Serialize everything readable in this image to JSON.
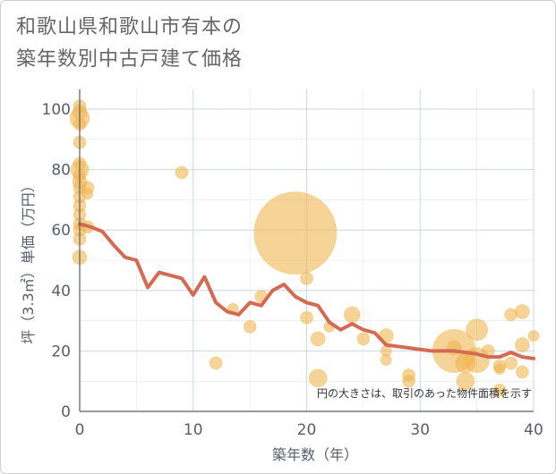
{
  "title": {
    "line1": "和歌山県和歌山市有本の",
    "line2": "築年数別中古戸建て価格"
  },
  "colors": {
    "bubble": "#f0b550",
    "line": "#d36a52",
    "grid": "#cdd6e0"
  },
  "chart_data": {
    "type": "scatter",
    "title": "和歌山県和歌山市有本の築年数別中古戸建て価格",
    "xlabel": "築年数（年）",
    "ylabel": "坪（3.3㎡）単価（万円）",
    "xlim": [
      0,
      40
    ],
    "ylim": [
      0,
      100
    ],
    "xticks": [
      0,
      10,
      20,
      30,
      40
    ],
    "yticks": [
      0,
      20,
      40,
      60,
      80,
      100
    ],
    "note": "円の大きさは、取引のあった物件面積を示す",
    "scatter": [
      {
        "x": 0,
        "y": 101,
        "s": 7
      },
      {
        "x": 0,
        "y": 99,
        "s": 8
      },
      {
        "x": 0,
        "y": 97,
        "s": 11
      },
      {
        "x": 0,
        "y": 95,
        "s": 7
      },
      {
        "x": 0,
        "y": 89,
        "s": 7
      },
      {
        "x": 0,
        "y": 82,
        "s": 7
      },
      {
        "x": 0,
        "y": 80,
        "s": 10
      },
      {
        "x": 0,
        "y": 78,
        "s": 7
      },
      {
        "x": 0,
        "y": 76,
        "s": 8
      },
      {
        "x": 0,
        "y": 74,
        "s": 7
      },
      {
        "x": 0,
        "y": 71,
        "s": 7
      },
      {
        "x": 0,
        "y": 68,
        "s": 7
      },
      {
        "x": 0,
        "y": 65,
        "s": 7
      },
      {
        "x": 0,
        "y": 62,
        "s": 7
      },
      {
        "x": 0,
        "y": 60,
        "s": 7
      },
      {
        "x": 0,
        "y": 57,
        "s": 7
      },
      {
        "x": 0,
        "y": 51,
        "s": 8
      },
      {
        "x": 0.7,
        "y": 74,
        "s": 7
      },
      {
        "x": 0.7,
        "y": 72,
        "s": 6
      },
      {
        "x": 0.7,
        "y": 61,
        "s": 7
      },
      {
        "x": 9,
        "y": 79,
        "s": 7
      },
      {
        "x": 12,
        "y": 16,
        "s": 7
      },
      {
        "x": 13.5,
        "y": 34,
        "s": 6
      },
      {
        "x": 15,
        "y": 28,
        "s": 7
      },
      {
        "x": 16,
        "y": 38,
        "s": 7
      },
      {
        "x": 19,
        "y": 59,
        "s": 46
      },
      {
        "x": 20,
        "y": 44,
        "s": 7
      },
      {
        "x": 20,
        "y": 31,
        "s": 7
      },
      {
        "x": 21,
        "y": 24,
        "s": 8
      },
      {
        "x": 21,
        "y": 11,
        "s": 10
      },
      {
        "x": 22,
        "y": 28,
        "s": 6
      },
      {
        "x": 24,
        "y": 32,
        "s": 9
      },
      {
        "x": 25,
        "y": 24,
        "s": 7
      },
      {
        "x": 27,
        "y": 25,
        "s": 8
      },
      {
        "x": 27,
        "y": 20,
        "s": 6
      },
      {
        "x": 27,
        "y": 17,
        "s": 6
      },
      {
        "x": 29,
        "y": 12,
        "s": 7
      },
      {
        "x": 29,
        "y": 10,
        "s": 7
      },
      {
        "x": 33,
        "y": 20,
        "s": 24
      },
      {
        "x": 33,
        "y": 21,
        "s": 8
      },
      {
        "x": 34,
        "y": 16,
        "s": 11
      },
      {
        "x": 34,
        "y": 10,
        "s": 10
      },
      {
        "x": 35,
        "y": 27,
        "s": 12
      },
      {
        "x": 35,
        "y": 17,
        "s": 14
      },
      {
        "x": 36,
        "y": 20,
        "s": 7
      },
      {
        "x": 37,
        "y": 15,
        "s": 7
      },
      {
        "x": 37,
        "y": 14,
        "s": 6
      },
      {
        "x": 37,
        "y": 7,
        "s": 7
      },
      {
        "x": 38,
        "y": 32,
        "s": 7
      },
      {
        "x": 38,
        "y": 16,
        "s": 7
      },
      {
        "x": 39,
        "y": 33,
        "s": 8
      },
      {
        "x": 39,
        "y": 22,
        "s": 8
      },
      {
        "x": 39,
        "y": 13,
        "s": 7
      },
      {
        "x": 40,
        "y": 25,
        "s": 6
      }
    ],
    "trend": {
      "x": [
        0,
        1,
        2,
        3,
        4,
        5,
        6,
        7,
        8,
        9,
        10,
        11,
        12,
        13,
        14,
        15,
        16,
        17,
        18,
        19,
        20,
        21,
        22,
        23,
        24,
        25,
        26,
        27,
        28,
        29,
        30,
        31,
        32,
        33,
        34,
        35,
        36,
        37,
        38,
        39,
        40
      ],
      "y": [
        62,
        61,
        59.5,
        55,
        51,
        50,
        41,
        46,
        45,
        44,
        38.5,
        44.5,
        36,
        33,
        32,
        36,
        35,
        40,
        42,
        38,
        36,
        35,
        29.5,
        27,
        29,
        27,
        26,
        22,
        21.5,
        21,
        20.5,
        20,
        20,
        20,
        19.5,
        19,
        18,
        18,
        19.5,
        18,
        17.5
      ]
    }
  }
}
